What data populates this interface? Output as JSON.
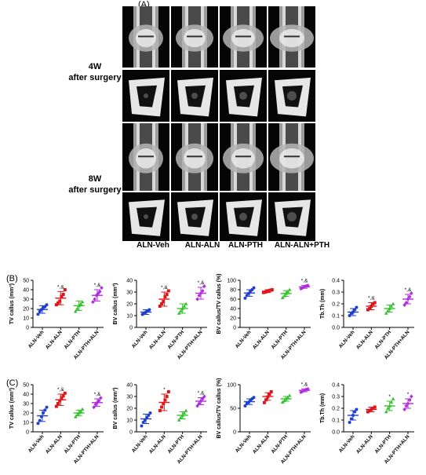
{
  "panel_a": {
    "label": "(A)",
    "rows": [
      {
        "line1": "4W",
        "line2": "after surgery"
      },
      {
        "line1": "8W",
        "line2": "after surgery"
      }
    ],
    "groups": [
      "ALN-Veh",
      "ALN-ALN",
      "ALN-PTH",
      "ALN-ALN+PTH"
    ]
  },
  "panel_b_label": "(B)",
  "panel_c_label": "(C)",
  "colors": {
    "veh": "#1f3fcf",
    "aln": "#e0161b",
    "pth": "#2fc12a",
    "pthaln": "#b12be0"
  },
  "chart_data": [
    {
      "type": "scatter",
      "panel": "B",
      "ylabel": "TV callus (mm³)",
      "yticks": [
        0,
        10,
        20,
        30,
        40,
        50
      ],
      "ylim": [
        0,
        50
      ],
      "categories": [
        "ALN-Veh",
        "ALN-ALN",
        "ALN-PTH",
        "ALN-PTH+ALN"
      ],
      "means": [
        19,
        31,
        23,
        34
      ],
      "sd": [
        4,
        7,
        5,
        6
      ],
      "points": [
        [
          14,
          17,
          19,
          21,
          22,
          24
        ],
        [
          24,
          26,
          28,
          33,
          35,
          40
        ],
        [
          17,
          20,
          23,
          25,
          27
        ],
        [
          27,
          30,
          34,
          36,
          38,
          42
        ]
      ],
      "annotations": [
        "",
        "*,&",
        "",
        "*,&"
      ]
    },
    {
      "type": "scatter",
      "panel": "B",
      "ylabel": "BV callus (mm³)",
      "yticks": [
        0,
        10,
        20,
        30,
        40
      ],
      "ylim": [
        0,
        40
      ],
      "categories": [
        "ALN-Veh",
        "ALN-ALN",
        "ALN-PTH",
        "ALN-PTH+ALN"
      ],
      "means": [
        13,
        24,
        16,
        29
      ],
      "sd": [
        2,
        6,
        4,
        5
      ],
      "points": [
        [
          11,
          12,
          13,
          14,
          15
        ],
        [
          18,
          20,
          22,
          26,
          28,
          31
        ],
        [
          12,
          14,
          16,
          18,
          20
        ],
        [
          24,
          27,
          29,
          31,
          35
        ]
      ],
      "annotations": [
        "",
        "*,&",
        "",
        "*,&"
      ]
    },
    {
      "type": "scatter",
      "panel": "B",
      "ylabel": "BV callus/TV callus (%)",
      "yticks": [
        0,
        20,
        40,
        60,
        80,
        100
      ],
      "ylim": [
        0,
        100
      ],
      "categories": [
        "ALN-Veh",
        "ALN-ALN",
        "ALN-PTH",
        "ALN-PTH+ALN"
      ],
      "means": [
        73,
        77,
        72,
        86
      ],
      "sd": [
        7,
        3,
        6,
        3
      ],
      "points": [
        [
          62,
          68,
          72,
          77,
          80,
          84
        ],
        [
          74,
          75,
          76,
          78,
          79,
          80
        ],
        [
          63,
          67,
          72,
          76,
          80
        ],
        [
          82,
          84,
          86,
          88,
          89
        ]
      ],
      "annotations": [
        "",
        "",
        "",
        "*,&"
      ]
    },
    {
      "type": "scatter",
      "panel": "B",
      "ylabel": "Tb.Th (mm)",
      "yticks": [
        0.0,
        0.1,
        0.2,
        0.3,
        0.4
      ],
      "ylim": [
        0,
        0.4
      ],
      "categories": [
        "ALN-Veh",
        "ALN-ALN",
        "ALN-PTH",
        "ALN-PTH+ALN"
      ],
      "means": [
        0.13,
        0.18,
        0.16,
        0.24
      ],
      "sd": [
        0.03,
        0.03,
        0.03,
        0.04
      ],
      "points": [
        [
          0.1,
          0.12,
          0.13,
          0.15,
          0.17
        ],
        [
          0.15,
          0.16,
          0.18,
          0.2,
          0.21
        ],
        [
          0.12,
          0.14,
          0.16,
          0.18,
          0.2
        ],
        [
          0.19,
          0.21,
          0.24,
          0.26,
          0.29
        ]
      ],
      "annotations": [
        "",
        "*,&",
        "",
        "*,&"
      ]
    },
    {
      "type": "scatter",
      "panel": "C",
      "ylabel": "TV callus (mm³)",
      "yticks": [
        0,
        10,
        20,
        30,
        40,
        50
      ],
      "ylim": [
        0,
        50
      ],
      "categories": [
        "ALN-Veh",
        "ALN-ALN",
        "ALN-PTH",
        "ALN-PTH+ALN"
      ],
      "means": [
        17,
        34,
        20,
        31
      ],
      "sd": [
        6,
        6,
        3,
        4
      ],
      "points": [
        [
          9,
          12,
          16,
          20,
          23,
          26
        ],
        [
          27,
          30,
          33,
          36,
          38,
          41
        ],
        [
          16,
          18,
          20,
          22,
          24
        ],
        [
          26,
          29,
          31,
          33,
          36
        ]
      ],
      "annotations": [
        "",
        "*,&",
        "",
        "*,&"
      ]
    },
    {
      "type": "scatter",
      "panel": "C",
      "ylabel": "BV callus (mm³)",
      "yticks": [
        0,
        10,
        20,
        30,
        40
      ],
      "ylim": [
        0,
        40
      ],
      "categories": [
        "ALN-Veh",
        "ALN-ALN",
        "ALN-PTH",
        "ALN-PTH+ALN"
      ],
      "means": [
        11,
        25,
        14,
        26
      ],
      "sd": [
        4,
        7,
        3,
        3
      ],
      "points": [
        [
          5,
          8,
          10,
          12,
          14,
          16
        ],
        [
          18,
          21,
          24,
          27,
          30,
          34
        ],
        [
          10,
          12,
          14,
          16,
          18
        ],
        [
          22,
          24,
          26,
          28,
          30
        ]
      ],
      "annotations": [
        "",
        "*",
        "",
        "*,&"
      ]
    },
    {
      "type": "scatter",
      "panel": "C",
      "ylabel": "BV callus/TV callus (%)",
      "yticks": [
        0,
        50,
        100
      ],
      "ylim": [
        0,
        100
      ],
      "categories": [
        "ALN-Veh",
        "ALN-ALN",
        "ALN-PTH",
        "ALN-PTH+ALN"
      ],
      "means": [
        64,
        75,
        70,
        88
      ],
      "sd": [
        6,
        8,
        5,
        3
      ],
      "points": [
        [
          55,
          60,
          63,
          67,
          70,
          73
        ],
        [
          62,
          68,
          74,
          80,
          85
        ],
        [
          63,
          66,
          70,
          73,
          77
        ],
        [
          84,
          86,
          88,
          90,
          91
        ]
      ],
      "annotations": [
        "",
        "",
        "",
        "*,&"
      ]
    },
    {
      "type": "scatter",
      "panel": "C",
      "ylabel": "Tb.Th (mm)",
      "yticks": [
        0.0,
        0.1,
        0.2,
        0.3,
        0.4
      ],
      "ylim": [
        0,
        0.4
      ],
      "categories": [
        "ALN-Veh",
        "ALN-ALN",
        "ALN-PTH",
        "ALN-PTH+ALN"
      ],
      "means": [
        0.14,
        0.19,
        0.22,
        0.24
      ],
      "sd": [
        0.04,
        0.02,
        0.04,
        0.04
      ],
      "points": [
        [
          0.08,
          0.11,
          0.14,
          0.17,
          0.19
        ],
        [
          0.17,
          0.18,
          0.19,
          0.2,
          0.21
        ],
        [
          0.17,
          0.2,
          0.22,
          0.25,
          0.28
        ],
        [
          0.19,
          0.22,
          0.24,
          0.27,
          0.3
        ]
      ],
      "annotations": [
        "",
        "",
        "*",
        "*"
      ]
    }
  ]
}
